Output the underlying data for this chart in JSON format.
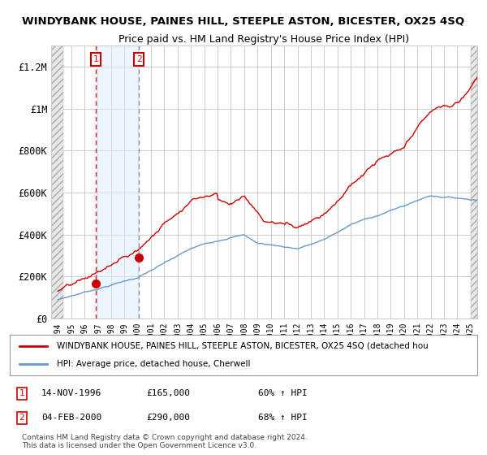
{
  "title": "WINDYBANK HOUSE, PAINES HILL, STEEPLE ASTON, BICESTER, OX25 4SQ",
  "subtitle": "Price paid vs. HM Land Registry's House Price Index (HPI)",
  "ylim": [
    0,
    1300000
  ],
  "yticks": [
    0,
    200000,
    400000,
    600000,
    800000,
    1000000,
    1200000
  ],
  "ytick_labels": [
    "£0",
    "£200K",
    "£400K",
    "£600K",
    "£800K",
    "£1M",
    "£1.2M"
  ],
  "purchase1": {
    "date": "14-NOV-1996",
    "price": 165000,
    "year": 1996.87,
    "label": "1",
    "pct": "60% ↑ HPI"
  },
  "purchase2": {
    "date": "04-FEB-2000",
    "price": 290000,
    "year": 2000.09,
    "label": "2",
    "pct": "68% ↑ HPI"
  },
  "legend_red": "WINDYBANK HOUSE, PAINES HILL, STEEPLE ASTON, BICESTER, OX25 4SQ (detached hou",
  "legend_blue": "HPI: Average price, detached house, Cherwell",
  "footnote1": "Contains HM Land Registry data © Crown copyright and database right 2024.",
  "footnote2": "This data is licensed under the Open Government Licence v3.0.",
  "red_color": "#cc0000",
  "blue_color": "#6699cc",
  "bg_color": "#ffffff",
  "grid_color": "#cccccc",
  "shade_color": "#ddeeff",
  "hatch_color": "#e0e0e0",
  "xmin": 1993.5,
  "xmax": 2025.5
}
